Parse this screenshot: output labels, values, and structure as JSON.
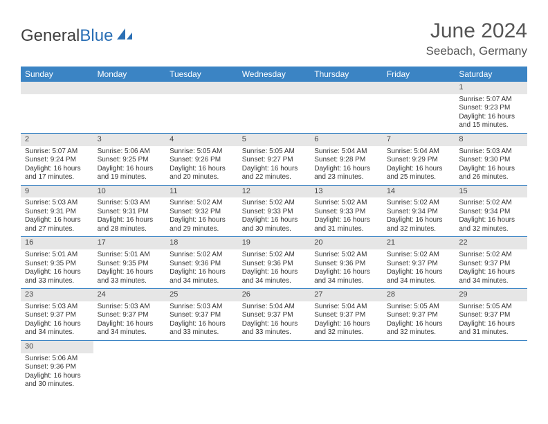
{
  "logo": {
    "general": "General",
    "blue": "Blue"
  },
  "header": {
    "month": "June 2024",
    "location": "Seebach, Germany"
  },
  "weekdays": [
    "Sunday",
    "Monday",
    "Tuesday",
    "Wednesday",
    "Thursday",
    "Friday",
    "Saturday"
  ],
  "colors": {
    "header_bg": "#3b84c4",
    "header_fg": "#ffffff",
    "daynum_bg": "#e6e6e6",
    "text": "#333333",
    "rule": "#3b84c4",
    "logo_blue": "#2a6fb5"
  },
  "weeks": [
    [
      null,
      null,
      null,
      null,
      null,
      null,
      {
        "n": "1",
        "sr": "5:07 AM",
        "ss": "9:23 PM",
        "dl": "16 hours and 15 minutes."
      }
    ],
    [
      {
        "n": "2",
        "sr": "5:07 AM",
        "ss": "9:24 PM",
        "dl": "16 hours and 17 minutes."
      },
      {
        "n": "3",
        "sr": "5:06 AM",
        "ss": "9:25 PM",
        "dl": "16 hours and 19 minutes."
      },
      {
        "n": "4",
        "sr": "5:05 AM",
        "ss": "9:26 PM",
        "dl": "16 hours and 20 minutes."
      },
      {
        "n": "5",
        "sr": "5:05 AM",
        "ss": "9:27 PM",
        "dl": "16 hours and 22 minutes."
      },
      {
        "n": "6",
        "sr": "5:04 AM",
        "ss": "9:28 PM",
        "dl": "16 hours and 23 minutes."
      },
      {
        "n": "7",
        "sr": "5:04 AM",
        "ss": "9:29 PM",
        "dl": "16 hours and 25 minutes."
      },
      {
        "n": "8",
        "sr": "5:03 AM",
        "ss": "9:30 PM",
        "dl": "16 hours and 26 minutes."
      }
    ],
    [
      {
        "n": "9",
        "sr": "5:03 AM",
        "ss": "9:31 PM",
        "dl": "16 hours and 27 minutes."
      },
      {
        "n": "10",
        "sr": "5:03 AM",
        "ss": "9:31 PM",
        "dl": "16 hours and 28 minutes."
      },
      {
        "n": "11",
        "sr": "5:02 AM",
        "ss": "9:32 PM",
        "dl": "16 hours and 29 minutes."
      },
      {
        "n": "12",
        "sr": "5:02 AM",
        "ss": "9:33 PM",
        "dl": "16 hours and 30 minutes."
      },
      {
        "n": "13",
        "sr": "5:02 AM",
        "ss": "9:33 PM",
        "dl": "16 hours and 31 minutes."
      },
      {
        "n": "14",
        "sr": "5:02 AM",
        "ss": "9:34 PM",
        "dl": "16 hours and 32 minutes."
      },
      {
        "n": "15",
        "sr": "5:02 AM",
        "ss": "9:34 PM",
        "dl": "16 hours and 32 minutes."
      }
    ],
    [
      {
        "n": "16",
        "sr": "5:01 AM",
        "ss": "9:35 PM",
        "dl": "16 hours and 33 minutes."
      },
      {
        "n": "17",
        "sr": "5:01 AM",
        "ss": "9:35 PM",
        "dl": "16 hours and 33 minutes."
      },
      {
        "n": "18",
        "sr": "5:02 AM",
        "ss": "9:36 PM",
        "dl": "16 hours and 34 minutes."
      },
      {
        "n": "19",
        "sr": "5:02 AM",
        "ss": "9:36 PM",
        "dl": "16 hours and 34 minutes."
      },
      {
        "n": "20",
        "sr": "5:02 AM",
        "ss": "9:36 PM",
        "dl": "16 hours and 34 minutes."
      },
      {
        "n": "21",
        "sr": "5:02 AM",
        "ss": "9:37 PM",
        "dl": "16 hours and 34 minutes."
      },
      {
        "n": "22",
        "sr": "5:02 AM",
        "ss": "9:37 PM",
        "dl": "16 hours and 34 minutes."
      }
    ],
    [
      {
        "n": "23",
        "sr": "5:03 AM",
        "ss": "9:37 PM",
        "dl": "16 hours and 34 minutes."
      },
      {
        "n": "24",
        "sr": "5:03 AM",
        "ss": "9:37 PM",
        "dl": "16 hours and 34 minutes."
      },
      {
        "n": "25",
        "sr": "5:03 AM",
        "ss": "9:37 PM",
        "dl": "16 hours and 33 minutes."
      },
      {
        "n": "26",
        "sr": "5:04 AM",
        "ss": "9:37 PM",
        "dl": "16 hours and 33 minutes."
      },
      {
        "n": "27",
        "sr": "5:04 AM",
        "ss": "9:37 PM",
        "dl": "16 hours and 32 minutes."
      },
      {
        "n": "28",
        "sr": "5:05 AM",
        "ss": "9:37 PM",
        "dl": "16 hours and 32 minutes."
      },
      {
        "n": "29",
        "sr": "5:05 AM",
        "ss": "9:37 PM",
        "dl": "16 hours and 31 minutes."
      }
    ],
    [
      {
        "n": "30",
        "sr": "5:06 AM",
        "ss": "9:36 PM",
        "dl": "16 hours and 30 minutes."
      },
      null,
      null,
      null,
      null,
      null,
      null
    ]
  ],
  "labels": {
    "sunrise": "Sunrise:",
    "sunset": "Sunset:",
    "daylight": "Daylight:"
  }
}
